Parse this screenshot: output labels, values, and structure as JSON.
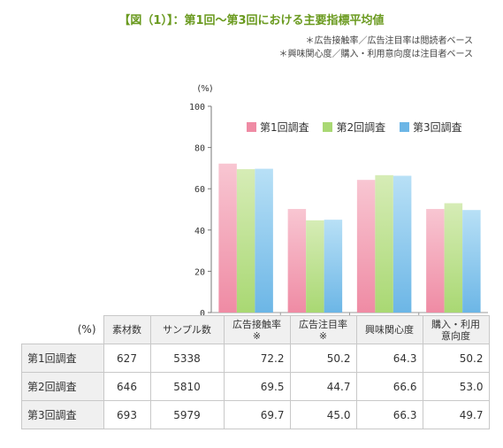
{
  "title": "【図（1）】：第1回～第3回における主要指標平均値",
  "notes": [
    "＊広告接触率／広告注目率は閲読者ベース",
    "＊興味関心度／購入・利用意向度は注目者ベース"
  ],
  "colors": {
    "series1": "#ef8ba4",
    "series2": "#a9d873",
    "series3": "#6cb6e6"
  },
  "chart_data": {
    "type": "bar",
    "unit": "(%)",
    "ylim": [
      0,
      100
    ],
    "yticks": [
      0,
      20,
      40,
      60,
      80,
      100
    ],
    "categories": [
      "広告接触率",
      "広告注目率",
      "興味関心度",
      "購入・利用意向度"
    ],
    "series": [
      {
        "name": "第1回調査",
        "values": [
          72.2,
          50.2,
          64.3,
          50.2
        ]
      },
      {
        "name": "第2回調査",
        "values": [
          69.5,
          44.7,
          66.6,
          53.0
        ]
      },
      {
        "name": "第3回調査",
        "values": [
          69.7,
          45.0,
          66.3,
          49.7
        ]
      }
    ],
    "legend": "inside top"
  },
  "table": {
    "corner": "(%)",
    "headers": [
      "素材数",
      "サンプル数",
      "広告接触率\n※",
      "広告注目率\n※",
      "興味関心度",
      "購入・利用\n意向度"
    ],
    "rows": [
      {
        "label": "第1回調査",
        "cells": [
          "627",
          "5338",
          "72.2",
          "50.2",
          "64.3",
          "50.2"
        ]
      },
      {
        "label": "第2回調査",
        "cells": [
          "646",
          "5810",
          "69.5",
          "44.7",
          "66.6",
          "53.0"
        ]
      },
      {
        "label": "第3回調査",
        "cells": [
          "693",
          "5979",
          "69.7",
          "45.0",
          "66.3",
          "49.7"
        ]
      }
    ]
  }
}
